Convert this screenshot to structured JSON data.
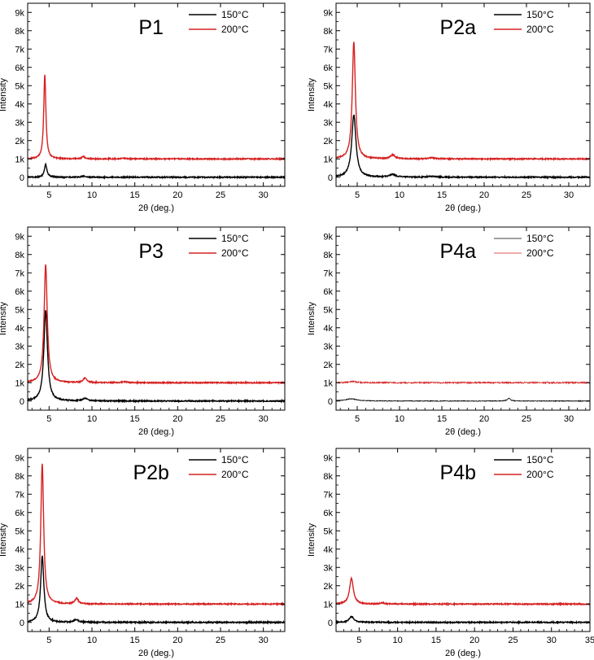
{
  "chart_data": [
    {
      "type": "line",
      "title": "P1",
      "xlabel": "2θ (deg.)",
      "ylabel": "Intensity",
      "xlim": [
        2.5,
        32.5
      ],
      "ylim": [
        -500,
        9500
      ],
      "xticks": [
        5,
        10,
        15,
        20,
        25,
        30
      ],
      "xtick_labels": [
        "5",
        "10",
        "15",
        "20",
        "25",
        "30"
      ],
      "yticks": [
        0,
        1000,
        2000,
        3000,
        4000,
        5000,
        6000,
        7000,
        8000,
        9000
      ],
      "ytick_labels": [
        "0",
        "1k",
        "2k",
        "3k",
        "4k",
        "5k",
        "6k",
        "7k",
        "8k",
        "9k"
      ],
      "legend": [
        "150°C",
        "200°C"
      ],
      "series": [
        {
          "name": "150°C",
          "color": "#000000",
          "baseline": 0,
          "noise": 30,
          "peaks": [
            {
              "x": 4.6,
              "h": 700,
              "w": 0.18
            },
            {
              "x": 9.0,
              "h": 60,
              "w": 0.25
            }
          ]
        },
        {
          "name": "200°C",
          "color": "#d62020",
          "baseline": 1000,
          "noise": 30,
          "peaks": [
            {
              "x": 4.5,
              "h": 4600,
              "w": 0.15
            },
            {
              "x": 9.0,
              "h": 130,
              "w": 0.2
            },
            {
              "x": 13.6,
              "h": 40,
              "w": 0.3
            }
          ]
        }
      ]
    },
    {
      "type": "line",
      "title": "P2a",
      "xlabel": "2θ (deg.)",
      "ylabel": "Intensity",
      "xlim": [
        2.5,
        32.5
      ],
      "ylim": [
        -500,
        9500
      ],
      "xticks": [
        5,
        10,
        15,
        20,
        25,
        30
      ],
      "xtick_labels": [
        "5",
        "10",
        "15",
        "20",
        "25",
        "30"
      ],
      "yticks": [
        0,
        1000,
        2000,
        3000,
        4000,
        5000,
        6000,
        7000,
        8000,
        9000
      ],
      "ytick_labels": [
        "0",
        "1k",
        "2k",
        "3k",
        "4k",
        "5k",
        "6k",
        "7k",
        "8k",
        "9k"
      ],
      "legend": [
        "150°C",
        "200°C"
      ],
      "series": [
        {
          "name": "150°C",
          "color": "#000000",
          "baseline": 0,
          "noise": 30,
          "peaks": [
            {
              "x": 4.6,
              "h": 3400,
              "w": 0.3
            },
            {
              "x": 9.2,
              "h": 150,
              "w": 0.4
            },
            {
              "x": 13.8,
              "h": 50,
              "w": 0.5
            }
          ]
        },
        {
          "name": "200°C",
          "color": "#d62020",
          "baseline": 1000,
          "noise": 30,
          "peaks": [
            {
              "x": 4.6,
              "h": 6400,
              "w": 0.22
            },
            {
              "x": 9.2,
              "h": 220,
              "w": 0.3
            },
            {
              "x": 13.8,
              "h": 60,
              "w": 0.4
            }
          ]
        }
      ]
    },
    {
      "type": "line",
      "title": "P3",
      "xlabel": "2θ (deg.)",
      "ylabel": "Intensity",
      "xlim": [
        2.5,
        32.5
      ],
      "ylim": [
        -500,
        9500
      ],
      "xticks": [
        5,
        10,
        15,
        20,
        25,
        30
      ],
      "xtick_labels": [
        "5",
        "10",
        "15",
        "20",
        "25",
        "30"
      ],
      "yticks": [
        0,
        1000,
        2000,
        3000,
        4000,
        5000,
        6000,
        7000,
        8000,
        9000
      ],
      "ytick_labels": [
        "0",
        "1k",
        "2k",
        "3k",
        "4k",
        "5k",
        "6k",
        "7k",
        "8k",
        "9k"
      ],
      "legend": [
        "150°C",
        "200°C"
      ],
      "series": [
        {
          "name": "150°C",
          "color": "#000000",
          "baseline": 0,
          "noise": 30,
          "peaks": [
            {
              "x": 4.6,
              "h": 4950,
              "w": 0.25
            },
            {
              "x": 9.2,
              "h": 150,
              "w": 0.3
            }
          ]
        },
        {
          "name": "200°C",
          "color": "#d62020",
          "baseline": 1000,
          "noise": 30,
          "peaks": [
            {
              "x": 4.6,
              "h": 6450,
              "w": 0.22
            },
            {
              "x": 9.2,
              "h": 250,
              "w": 0.25
            },
            {
              "x": 13.8,
              "h": 50,
              "w": 0.3
            }
          ]
        }
      ]
    },
    {
      "type": "line",
      "title": "P4a",
      "xlabel": "2θ (deg.)",
      "ylabel": "Intensity",
      "xlim": [
        2.5,
        32.5
      ],
      "ylim": [
        -500,
        9500
      ],
      "xticks": [
        5,
        10,
        15,
        20,
        25,
        30
      ],
      "xtick_labels": [
        "5",
        "10",
        "15",
        "20",
        "25",
        "30"
      ],
      "yticks": [
        0,
        1000,
        2000,
        3000,
        4000,
        5000,
        6000,
        7000,
        8000,
        9000
      ],
      "ytick_labels": [
        "0",
        "1k",
        "2k",
        "3k",
        "4k",
        "5k",
        "6k",
        "7k",
        "8k",
        "9k"
      ],
      "legend": [
        "150°C",
        "200°C"
      ],
      "series": [
        {
          "name": "150°C",
          "color": "#000000",
          "baseline": 0,
          "noise": 20,
          "peaks": [
            {
              "x": 4.3,
              "h": 120,
              "w": 0.8
            },
            {
              "x": 22.9,
              "h": 150,
              "w": 0.2
            }
          ]
        },
        {
          "name": "200°C",
          "color": "#d62020",
          "baseline": 1000,
          "noise": 40,
          "peaks": [
            {
              "x": 4.5,
              "h": 60,
              "w": 0.5
            }
          ]
        }
      ]
    },
    {
      "type": "line",
      "title": "P2b",
      "xlabel": "2θ (deg.)",
      "ylabel": "Intensity",
      "xlim": [
        2.5,
        32.5
      ],
      "ylim": [
        -500,
        9500
      ],
      "xticks": [
        5,
        10,
        15,
        20,
        25,
        30
      ],
      "xtick_labels": [
        "5",
        "10",
        "15",
        "20",
        "25",
        "30"
      ],
      "yticks": [
        0,
        1000,
        2000,
        3000,
        4000,
        5000,
        6000,
        7000,
        8000,
        9000
      ],
      "ytick_labels": [
        "0",
        "1k",
        "2k",
        "3k",
        "4k",
        "5k",
        "6k",
        "7k",
        "8k",
        "9k"
      ],
      "legend": [
        "150°C",
        "200°C"
      ],
      "series": [
        {
          "name": "150°C",
          "color": "#000000",
          "baseline": 0,
          "noise": 35,
          "peaks": [
            {
              "x": 4.2,
              "h": 3650,
              "w": 0.22
            },
            {
              "x": 8.2,
              "h": 150,
              "w": 0.3
            }
          ]
        },
        {
          "name": "200°C",
          "color": "#d62020",
          "baseline": 1000,
          "noise": 30,
          "peaks": [
            {
              "x": 4.2,
              "h": 7650,
              "w": 0.2
            },
            {
              "x": 8.2,
              "h": 300,
              "w": 0.25
            }
          ]
        }
      ]
    },
    {
      "type": "line",
      "title": "P4b",
      "xlabel": "2θ (deg.)",
      "ylabel": "Intensity",
      "xlim": [
        2,
        35
      ],
      "ylim": [
        -500,
        9500
      ],
      "xticks": [
        5,
        10,
        15,
        20,
        25,
        30,
        35
      ],
      "xtick_labels": [
        "5",
        "10",
        "15",
        "20",
        "25",
        "30",
        "35"
      ],
      "yticks": [
        0,
        1000,
        2000,
        3000,
        4000,
        5000,
        6000,
        7000,
        8000,
        9000
      ],
      "ytick_labels": [
        "0",
        "1k",
        "2k",
        "3k",
        "4k",
        "5k",
        "6k",
        "7k",
        "8k",
        "9k"
      ],
      "legend": [
        "150°C",
        "200°C"
      ],
      "series": [
        {
          "name": "150°C",
          "color": "#000000",
          "baseline": 0,
          "noise": 30,
          "peaks": [
            {
              "x": 4.0,
              "h": 320,
              "w": 0.35
            }
          ]
        },
        {
          "name": "200°C",
          "color": "#d62020",
          "baseline": 1000,
          "noise": 30,
          "peaks": [
            {
              "x": 4.0,
              "h": 1400,
              "w": 0.3
            },
            {
              "x": 8.0,
              "h": 60,
              "w": 0.3
            }
          ]
        }
      ]
    }
  ]
}
